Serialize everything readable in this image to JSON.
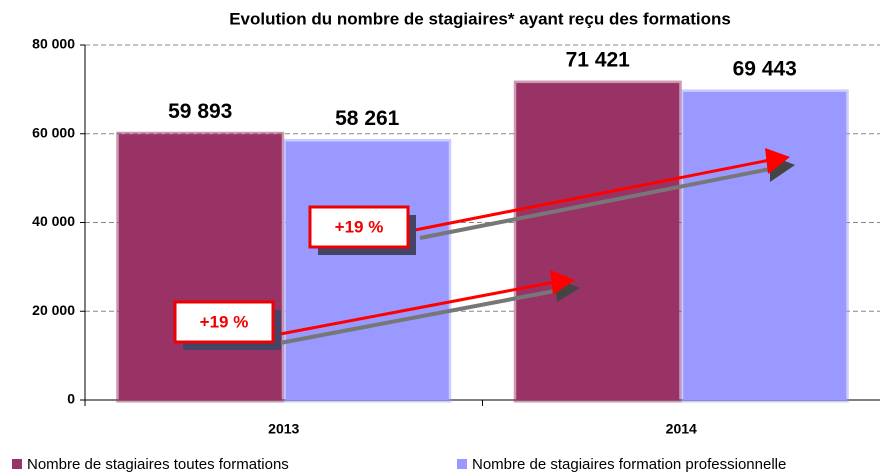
{
  "chart_data": {
    "type": "bar",
    "title": "Evolution du nombre de stagiaires* ayant reçu des formations",
    "categories": [
      "2013",
      "2014"
    ],
    "series": [
      {
        "name": "Nombre de stagiaires toutes formations",
        "color": "#993366",
        "values": [
          59893,
          71421
        ],
        "value_labels": [
          "59 893",
          "71 421"
        ]
      },
      {
        "name": "Nombre de stagiaires formation professionnelle",
        "color": "#9999ff",
        "values": [
          58261,
          69443
        ],
        "value_labels": [
          "58 261",
          "69 443"
        ]
      }
    ],
    "ylim": [
      0,
      80000
    ],
    "yticks": [
      0,
      {
        "value": 20000,
        "label": "20 000"
      },
      {
        "value": 40000,
        "label": "40 000"
      },
      {
        "value": 60000,
        "label": "60 000"
      },
      {
        "value": 80000,
        "label": "80 000"
      }
    ],
    "grid": true,
    "annotations": [
      "+19 %",
      "+19 %"
    ]
  }
}
